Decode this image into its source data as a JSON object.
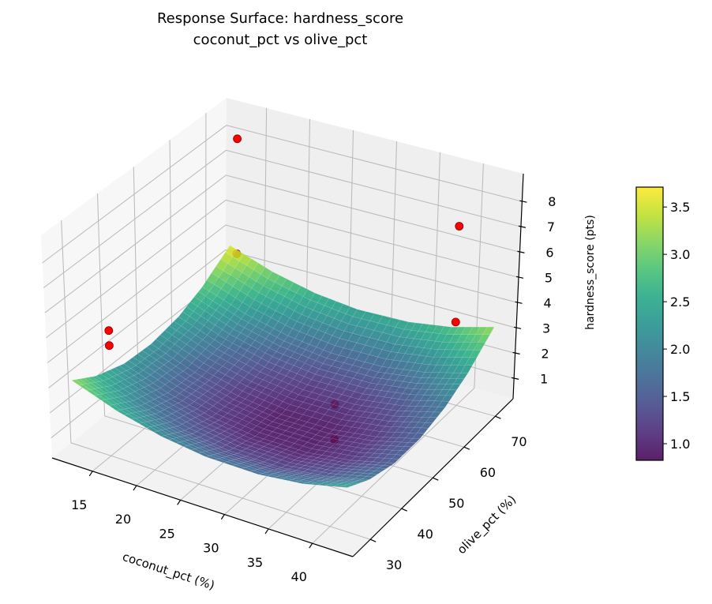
{
  "chart_data": {
    "type": "surface3d",
    "title": "Response Surface: hardness_score",
    "subtitle": "coconut_pct vs olive_pct",
    "xlabel": "coconut_pct (%)",
    "ylabel": "olive_pct (%)",
    "zlabel": "hardness_score (pts)",
    "xlim": [
      10.4,
      44.6
    ],
    "ylim": [
      24.4,
      75.7
    ],
    "zlim": [
      0.2,
      9.1
    ],
    "xticks": [
      15,
      20,
      25,
      30,
      35,
      40
    ],
    "yticks": [
      30,
      40,
      50,
      60,
      70
    ],
    "zticks": [
      1,
      2,
      3,
      4,
      5,
      6,
      7,
      8
    ],
    "grid": true,
    "colormap": "viridis",
    "surface": {
      "x": [
        12,
        17,
        22,
        27,
        33,
        38,
        43
      ],
      "y": [
        27,
        34,
        42,
        50,
        58,
        65,
        73
      ],
      "z": [
        [
          3.2,
          2.55,
          2.09,
          1.84,
          1.81,
          2.0,
          2.4
        ],
        [
          2.62,
          1.98,
          1.54,
          1.29,
          1.27,
          1.48,
          1.88
        ],
        [
          2.24,
          1.61,
          1.18,
          0.95,
          0.94,
          1.16,
          1.57
        ],
        [
          2.17,
          1.54,
          1.12,
          0.9,
          0.91,
          1.14,
          1.57
        ],
        [
          2.39,
          1.78,
          1.37,
          1.16,
          1.18,
          1.42,
          1.86
        ],
        [
          2.83,
          2.23,
          1.83,
          1.63,
          1.66,
          1.91,
          2.36
        ],
        [
          3.62,
          3.03,
          2.64,
          2.45,
          2.5,
          2.76,
          3.22
        ]
      ]
    },
    "scatter": {
      "color": "#ff0000",
      "points": [
        {
          "x": 14,
          "y": 70,
          "z": 8.4
        },
        {
          "x": 14,
          "y": 70,
          "z": 3.8
        },
        {
          "x": 38.5,
          "y": 73,
          "z": 6.8
        },
        {
          "x": 38.5,
          "y": 73,
          "z": 3.0
        },
        {
          "x": 12,
          "y": 38,
          "z": 4.0
        },
        {
          "x": 12,
          "y": 38,
          "z": 3.4
        },
        {
          "x": 35,
          "y": 45,
          "z": 2.7
        },
        {
          "x": 35,
          "y": 45,
          "z": 1.3
        }
      ]
    },
    "colorbar": {
      "range": [
        0.825,
        3.71
      ],
      "ticks": [
        "1.0",
        "1.5",
        "2.0",
        "2.5",
        "3.0",
        "3.5"
      ]
    }
  }
}
